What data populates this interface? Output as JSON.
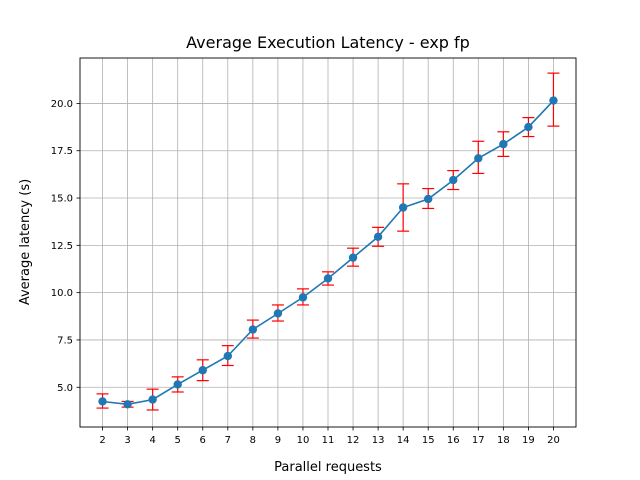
{
  "chart_data": {
    "type": "line",
    "title": "Average Execution Latency - exp fp",
    "xlabel": "Parallel requests",
    "ylabel": "Average latency (s)",
    "x": [
      2,
      3,
      4,
      5,
      6,
      7,
      8,
      9,
      10,
      11,
      12,
      13,
      14,
      15,
      16,
      17,
      18,
      19,
      20
    ],
    "xticks": [
      "2",
      "3",
      "4",
      "5",
      "6",
      "7",
      "8",
      "9",
      "10",
      "11",
      "12",
      "13",
      "14",
      "15",
      "16",
      "17",
      "18",
      "19",
      "20"
    ],
    "yticks": [
      "5.0",
      "7.5",
      "10.0",
      "12.5",
      "15.0",
      "17.5",
      "20.0"
    ],
    "ytick_values": [
      5.0,
      7.5,
      10.0,
      12.5,
      15.0,
      17.5,
      20.0
    ],
    "xlim": [
      1.1,
      20.9
    ],
    "ylim": [
      2.9,
      22.4
    ],
    "grid": true,
    "series": [
      {
        "values": [
          4.25,
          4.1,
          4.35,
          5.15,
          5.9,
          6.65,
          8.05,
          8.9,
          9.75,
          10.75,
          11.85,
          12.95,
          14.5,
          14.95,
          15.95,
          17.1,
          17.85,
          18.75,
          20.15
        ],
        "error_low": [
          3.9,
          3.95,
          3.8,
          4.75,
          5.35,
          6.15,
          7.6,
          8.5,
          9.35,
          10.4,
          11.4,
          12.45,
          13.25,
          14.45,
          15.45,
          16.3,
          17.2,
          18.25,
          18.8
        ],
        "error_high": [
          4.65,
          4.25,
          4.9,
          5.55,
          6.45,
          7.2,
          8.55,
          9.35,
          10.2,
          11.1,
          12.35,
          13.45,
          15.75,
          15.5,
          16.45,
          18.0,
          18.5,
          19.25,
          21.6
        ],
        "color": "#1f77b4",
        "error_color": "#ff0000"
      }
    ]
  }
}
